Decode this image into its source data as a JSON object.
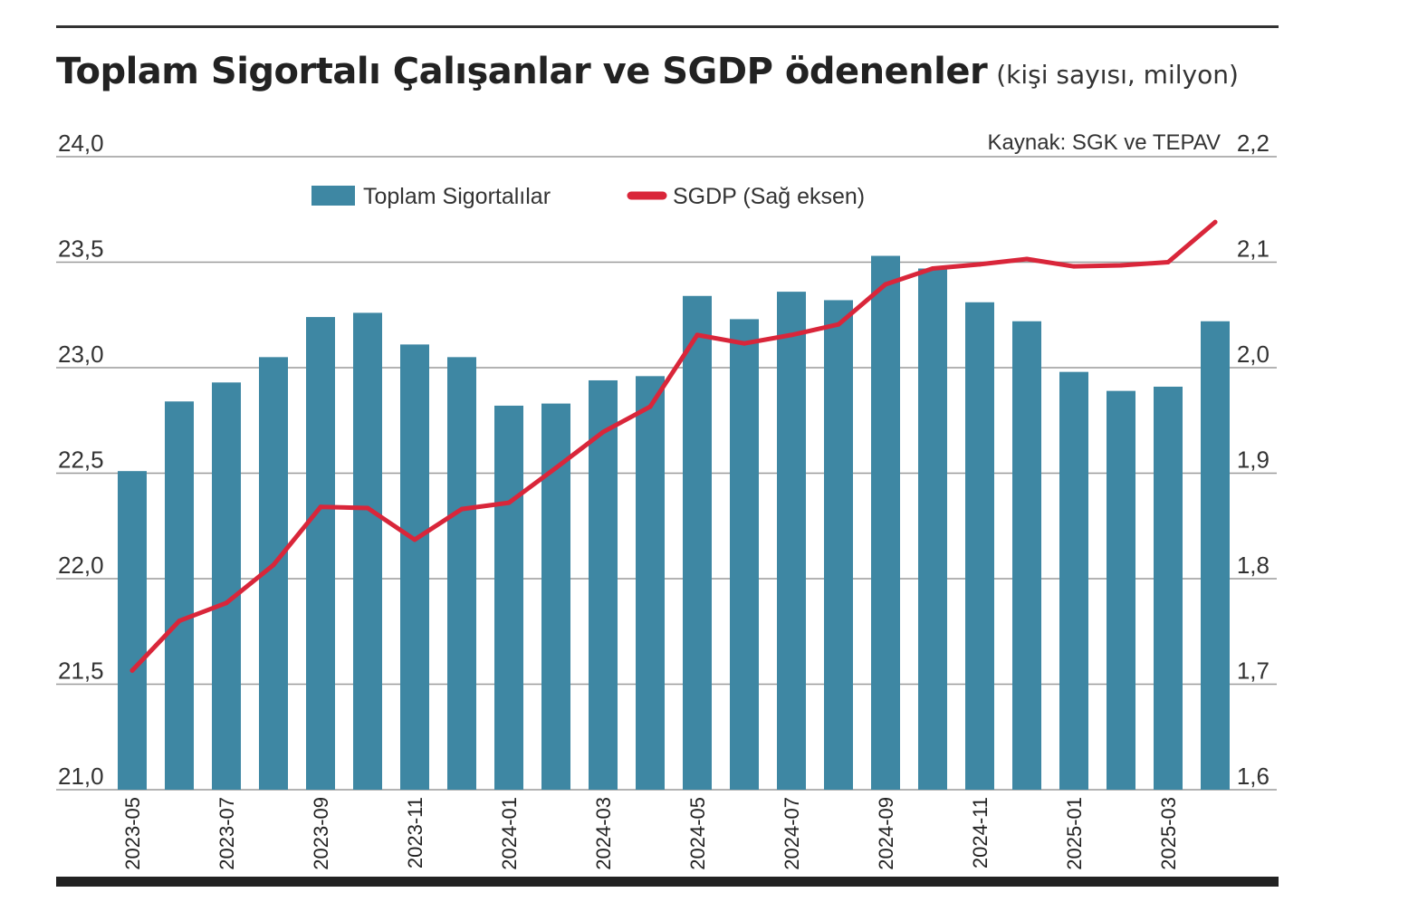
{
  "header": {
    "title": "Toplam Sigortalı Çalışanlar ve SGDP ödenenler",
    "subtitle": "(kişi sayısı, milyon)"
  },
  "source": "Kaynak: SGK ve TEPAV",
  "colors": {
    "bar": "#3e87a3",
    "line": "#d9263a",
    "grid": "#9a9a9a",
    "rule": "#222222"
  },
  "chart_data": {
    "type": "bar",
    "title": "Toplam Sigortalı Çalışanlar ve SGDP ödenenler",
    "subtitle": "(kişi sayısı, milyon)",
    "categories": [
      "2023-05",
      "2023-06",
      "2023-07",
      "2023-08",
      "2023-09",
      "2023-10",
      "2023-11",
      "2023-12",
      "2024-01",
      "2024-02",
      "2024-03",
      "2024-04",
      "2024-05",
      "2024-06",
      "2024-07",
      "2024-08",
      "2024-09",
      "2024-10",
      "2024-11",
      "2024-12",
      "2025-01",
      "2025-02",
      "2025-03",
      "2025-04"
    ],
    "x_tick_labels": [
      "2023-05",
      "2023-07",
      "2023-09",
      "2023-11",
      "2024-01",
      "2024-03",
      "2024-05",
      "2024-07",
      "2024-09",
      "2024-11",
      "2025-01",
      "2025-03"
    ],
    "series": [
      {
        "name": "Toplam Sigortalılar",
        "type": "bar",
        "axis": "left",
        "values": [
          22.51,
          22.84,
          22.93,
          23.05,
          23.24,
          23.26,
          23.11,
          23.05,
          22.82,
          22.83,
          22.94,
          22.96,
          23.34,
          23.23,
          23.36,
          23.32,
          23.53,
          23.47,
          23.31,
          23.22,
          22.98,
          22.89,
          22.91,
          23.22
        ]
      },
      {
        "name": "SGDP (Sağ eksen)",
        "type": "line",
        "axis": "right",
        "values": [
          1.713,
          1.76,
          1.777,
          1.813,
          1.868,
          1.867,
          1.837,
          1.866,
          1.872,
          1.905,
          1.939,
          1.963,
          2.031,
          2.023,
          2.031,
          2.041,
          2.079,
          2.094,
          2.098,
          2.103,
          2.096,
          2.097,
          2.1,
          2.138
        ]
      }
    ],
    "ylim_left": [
      21.0,
      24.0
    ],
    "ylim_right": [
      1.6,
      2.2
    ],
    "y_ticks_left": [
      "21,0",
      "21,5",
      "22,0",
      "22,5",
      "23,0",
      "23,5",
      "24,0"
    ],
    "y_ticks_right": [
      "1,6",
      "1,7",
      "1,8",
      "1,9",
      "2,0",
      "2,1",
      "2,2"
    ],
    "grid": "horizontal",
    "legend_position": "top-left"
  }
}
